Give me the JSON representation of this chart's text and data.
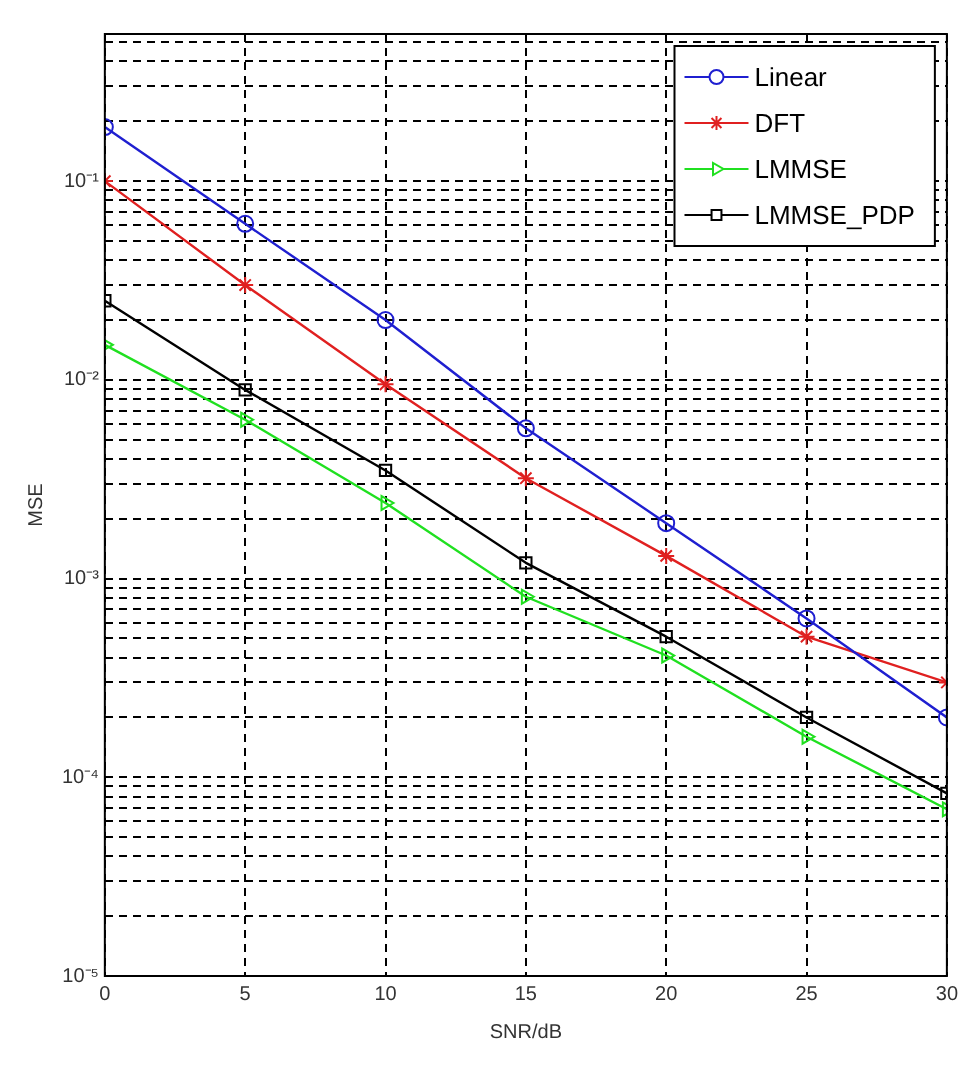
{
  "chart_data": {
    "type": "line",
    "xlabel": "SNR/dB",
    "ylabel": "MSE",
    "log": "y",
    "grid": true,
    "legend": "top right",
    "x": [
      0,
      5,
      10,
      15,
      20,
      25,
      30
    ],
    "xlim": [
      0,
      30
    ],
    "xticks": [
      0,
      5,
      10,
      15,
      20,
      25,
      30
    ],
    "ylim": [
      1e-05,
      0.55
    ],
    "yticks": [
      {
        "value": 1e-05,
        "label": "10⁻⁵"
      },
      {
        "value": 2e-05,
        "label": null
      },
      {
        "value": 3e-05,
        "label": null
      },
      {
        "value": 4e-05,
        "label": null
      },
      {
        "value": 5e-05,
        "label": null
      },
      {
        "value": 6e-05,
        "label": null
      },
      {
        "value": 7e-05,
        "label": null
      },
      {
        "value": 8e-05,
        "label": null
      },
      {
        "value": 9e-05,
        "label": null
      },
      {
        "value": 0.0001,
        "label": "10⁻⁴"
      },
      {
        "value": 0.0002,
        "label": null
      },
      {
        "value": 0.0003,
        "label": null
      },
      {
        "value": 0.0004,
        "label": null
      },
      {
        "value": 0.0005,
        "label": null
      },
      {
        "value": 0.0006,
        "label": null
      },
      {
        "value": 0.0007,
        "label": null
      },
      {
        "value": 0.0008,
        "label": null
      },
      {
        "value": 0.0009,
        "label": null
      },
      {
        "value": 0.001,
        "label": "10⁻³"
      },
      {
        "value": 0.002,
        "label": null
      },
      {
        "value": 0.003,
        "label": null
      },
      {
        "value": 0.004,
        "label": null
      },
      {
        "value": 0.005,
        "label": null
      },
      {
        "value": 0.006,
        "label": null
      },
      {
        "value": 0.007,
        "label": null
      },
      {
        "value": 0.008,
        "label": null
      },
      {
        "value": 0.009,
        "label": null
      },
      {
        "value": 0.01,
        "label": "10⁻²"
      },
      {
        "value": 0.02,
        "label": null
      },
      {
        "value": 0.03,
        "label": null
      },
      {
        "value": 0.04,
        "label": null
      },
      {
        "value": 0.05,
        "label": null
      },
      {
        "value": 0.06,
        "label": null
      },
      {
        "value": 0.07,
        "label": null
      },
      {
        "value": 0.08,
        "label": null
      },
      {
        "value": 0.09,
        "label": null
      },
      {
        "value": 0.1,
        "label": "10⁻¹"
      },
      {
        "value": 0.2,
        "label": null
      },
      {
        "value": 0.3,
        "label": null
      },
      {
        "value": 0.4,
        "label": null
      },
      {
        "value": 0.5,
        "label": null
      }
    ],
    "line_style": "solid",
    "series": [
      {
        "name": "Linear",
        "color": "#1f1fd0",
        "marker": "circle",
        "values": [
          0.187,
          0.061,
          0.02,
          0.0057,
          0.0019,
          0.00063,
          0.0002
        ]
      },
      {
        "name": "DFT",
        "color": "#e02020",
        "marker": "cross",
        "values": [
          0.1,
          0.03,
          0.0095,
          0.0032,
          0.0013,
          0.00051,
          0.0003
        ]
      },
      {
        "name": "LMMSE",
        "color": "#20e020",
        "marker": "triangle",
        "values": [
          0.015,
          0.0063,
          0.0024,
          0.00081,
          0.00041,
          0.00016,
          6.9e-05
        ]
      },
      {
        "name": "LMMSE_PDP",
        "color": "#000000",
        "marker": "square",
        "values": [
          0.025,
          0.0089,
          0.0035,
          0.0012,
          0.00051,
          0.0002,
          8.3e-05
        ]
      }
    ]
  }
}
